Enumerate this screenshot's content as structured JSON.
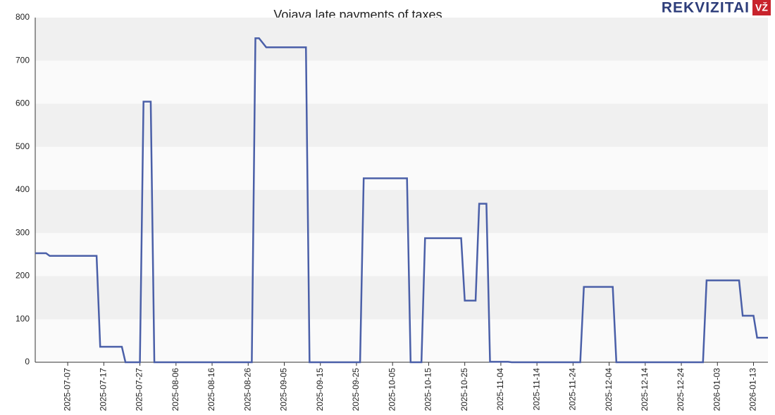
{
  "logo": {
    "text": "REKVIZITAI",
    "badge": "VŽ"
  },
  "chart_data": {
    "type": "line",
    "title": "Vojava late payments of taxes",
    "x": [
      "2025-06-28",
      "2025-07-01",
      "2025-07-02",
      "2025-07-15",
      "2025-07-16",
      "2025-07-22",
      "2025-07-23",
      "2025-07-27",
      "2025-07-28",
      "2025-07-30",
      "2025-07-31",
      "2025-08-27",
      "2025-08-28",
      "2025-08-29",
      "2025-08-31",
      "2025-09-11",
      "2025-09-12",
      "2025-09-26",
      "2025-09-27",
      "2025-10-09",
      "2025-10-10",
      "2025-10-13",
      "2025-10-14",
      "2025-10-24",
      "2025-10-25",
      "2025-10-28",
      "2025-10-29",
      "2025-10-31",
      "2025-11-01",
      "2025-11-06",
      "2025-11-07",
      "2025-11-26",
      "2025-11-27",
      "2025-12-05",
      "2025-12-06",
      "2025-12-30",
      "2025-12-31",
      "2026-01-09",
      "2026-01-10",
      "2026-01-13",
      "2026-01-14",
      "2026-01-17"
    ],
    "series": [
      {
        "name": "Late payments",
        "color": "#4a5fa8",
        "values": [
          253,
          253,
          247,
          247,
          36,
          36,
          0,
          0,
          605,
          605,
          0,
          0,
          752,
          752,
          731,
          731,
          0,
          0,
          427,
          427,
          0,
          0,
          288,
          288,
          143,
          143,
          368,
          368,
          1,
          1,
          0,
          0,
          175,
          175,
          0,
          0,
          190,
          190,
          108,
          108,
          57,
          57
        ]
      }
    ],
    "xlim": [
      "2025-06-28",
      "2026-01-17"
    ],
    "xticks": [
      "2025-07-07",
      "2025-07-17",
      "2025-07-27",
      "2025-08-06",
      "2025-08-16",
      "2025-08-26",
      "2025-09-05",
      "2025-09-15",
      "2025-09-25",
      "2025-10-05",
      "2025-10-15",
      "2025-10-25",
      "2025-11-04",
      "2025-11-14",
      "2025-11-24",
      "2025-12-04",
      "2025-12-14",
      "2025-12-24",
      "2026-01-03",
      "2026-01-13"
    ],
    "ylim": [
      0,
      800
    ],
    "yticks": [
      0,
      100,
      200,
      300,
      400,
      500,
      600,
      700,
      800
    ],
    "grid": true
  }
}
